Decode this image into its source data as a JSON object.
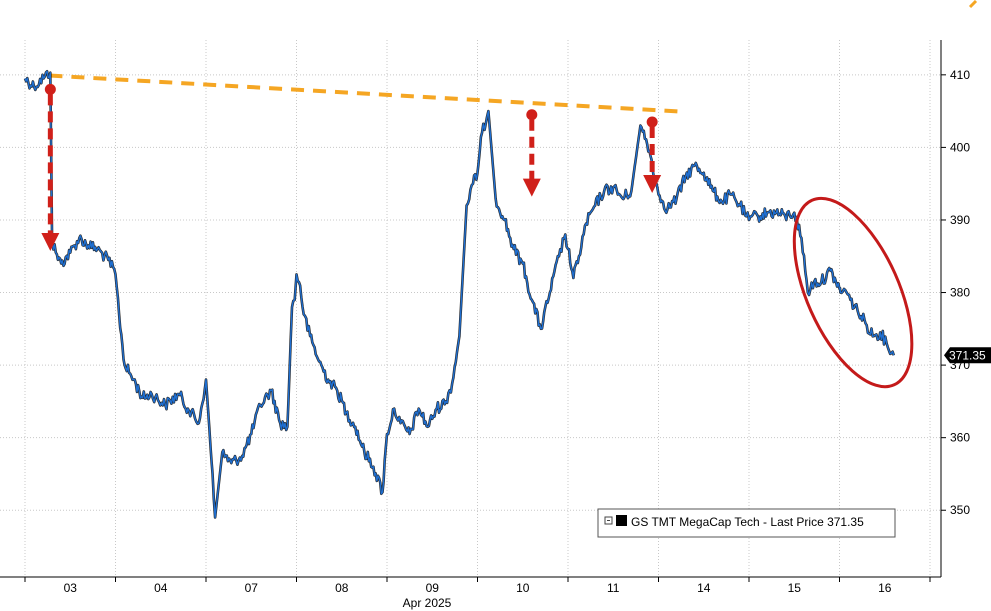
{
  "chart_data": {
    "type": "line",
    "title": "",
    "xlabel": "",
    "ylabel": "",
    "month_label": "Apr 2025",
    "ylim": [
      340.8,
      414.8
    ],
    "ytick_values": [
      350,
      360,
      370,
      380,
      390,
      400,
      410
    ],
    "ytick_labels": [
      "350",
      "360",
      "370",
      "380",
      "390",
      "400",
      "410"
    ],
    "categories": [
      "03",
      "04",
      "07",
      "08",
      "09",
      "10",
      "11",
      "14",
      "15",
      "16"
    ],
    "grid": true,
    "legend_position": "bottom-right",
    "series": [
      {
        "name": "GS TMT MegaCap Tech - Last Price 371.35",
        "color": "#1f6fd1",
        "last_value": 371.35,
        "last_label": "371.35",
        "x": [
          0.0,
          0.1,
          0.22,
          0.28,
          0.3,
          0.34,
          0.4,
          0.5,
          0.6,
          0.7,
          0.8,
          0.92,
          1.0,
          1.04,
          1.1,
          1.2,
          1.3,
          1.4,
          1.55,
          1.7,
          1.8,
          1.92,
          2.0,
          2.06,
          2.1,
          2.18,
          2.28,
          2.4,
          2.5,
          2.6,
          2.72,
          2.82,
          2.9,
          2.95,
          2.98,
          3.0,
          3.04,
          3.08,
          3.15,
          3.25,
          3.35,
          3.45,
          3.55,
          3.65,
          3.75,
          3.85,
          3.95,
          4.0,
          4.08,
          4.15,
          4.25,
          4.35,
          4.45,
          4.55,
          4.65,
          4.72,
          4.8,
          4.88,
          4.95,
          5.0,
          5.05,
          5.12,
          5.2,
          5.3,
          5.4,
          5.5,
          5.6,
          5.7,
          5.8,
          5.9,
          5.97,
          6.0,
          6.06,
          6.12,
          6.2,
          6.3,
          6.4,
          6.5,
          6.6,
          6.7,
          6.8,
          6.9,
          6.96,
          7.0,
          7.05,
          7.1,
          7.2,
          7.3,
          7.4,
          7.5,
          7.6,
          7.7,
          7.8,
          7.9,
          7.97,
          8.0,
          8.03,
          8.1,
          8.2,
          8.3,
          8.4,
          8.5,
          8.58,
          8.65,
          8.72,
          8.8,
          8.9,
          8.96,
          9.0,
          9.01,
          9.05,
          9.12,
          9.2,
          9.3,
          9.38,
          9.45,
          9.52,
          9.6
        ],
        "values": [
          409.5,
          408.4,
          409.8,
          410.3,
          387.0,
          385.5,
          384.0,
          385.5,
          387.5,
          386.5,
          386.0,
          384.5,
          382.5,
          377.0,
          370.0,
          368.0,
          365.5,
          366.0,
          364.5,
          366.0,
          364.0,
          362.0,
          368.0,
          357.0,
          349.0,
          358.0,
          356.5,
          357.5,
          360.5,
          364.5,
          366.5,
          362.0,
          361.5,
          378.0,
          379.0,
          382.5,
          381.0,
          377.0,
          374.0,
          370.5,
          368.0,
          366.5,
          363.5,
          361.5,
          358.0,
          356.0,
          352.5,
          360.5,
          364.0,
          362.0,
          360.5,
          364.0,
          361.5,
          364.0,
          365.0,
          367.5,
          374.0,
          392.0,
          395.0,
          396.5,
          402.0,
          405.0,
          393.0,
          390.0,
          386.0,
          384.0,
          379.0,
          375.0,
          380.0,
          385.0,
          388.0,
          386.0,
          382.0,
          385.0,
          389.5,
          392.0,
          394.0,
          394.5,
          393.0,
          394.0,
          403.0,
          399.5,
          396.0,
          393.5,
          392.5,
          391.5,
          393.0,
          396.0,
          397.5,
          396.5,
          394.0,
          392.5,
          393.5,
          392.0,
          390.5,
          390.0,
          390.5,
          390.5,
          391.0,
          391.0,
          390.5,
          391.0,
          387.5,
          380.0,
          381.5,
          381.5,
          383.0,
          381.5,
          380.5,
          380.0,
          380.5,
          379.0,
          377.5,
          375.5,
          374.0,
          374.5,
          373.0,
          371.35
        ]
      }
    ],
    "annotations": {
      "resistance_line": {
        "x": [
          0.27,
          7.3
        ],
        "y": [
          409.9,
          404.9
        ],
        "color": "#f5a623",
        "style": "dashed"
      },
      "arrows": [
        {
          "x": 0.28,
          "y_from": 408.0,
          "y_to": 386.0
        },
        {
          "x": 5.6,
          "y_from": 404.5,
          "y_to": 393.5
        },
        {
          "x": 6.93,
          "y_from": 403.5,
          "y_to": 394.0
        }
      ],
      "arrow_color": "#d0201a",
      "ellipse": {
        "cx": 9.15,
        "cy": 380.0,
        "color": "#c41a1a"
      }
    }
  }
}
